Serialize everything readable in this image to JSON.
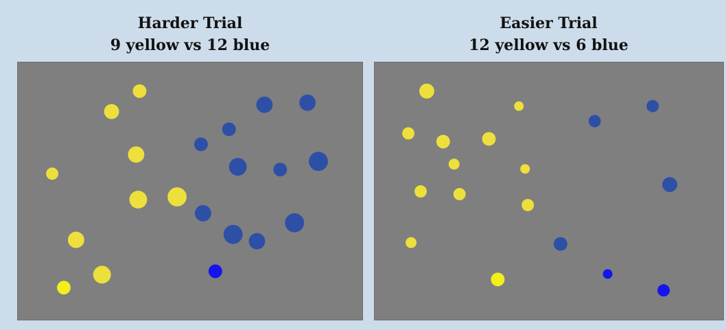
{
  "colors": {
    "background": "#cddcea",
    "stage": "#7f7f7f",
    "yellow": "#ede03c",
    "yellow_bright": "#f3ef1a",
    "blue": "#2e4fa6",
    "blue_bright": "#1414ee"
  },
  "panels": [
    {
      "title": "Harder Trial",
      "subtitle": "9 yellow vs 12 blue",
      "yellow_count": 9,
      "blue_count": 12
    },
    {
      "title": "Easier Trial",
      "subtitle": "12 yellow vs 6 blue",
      "yellow_count": 12,
      "blue_count": 6
    }
  ]
}
